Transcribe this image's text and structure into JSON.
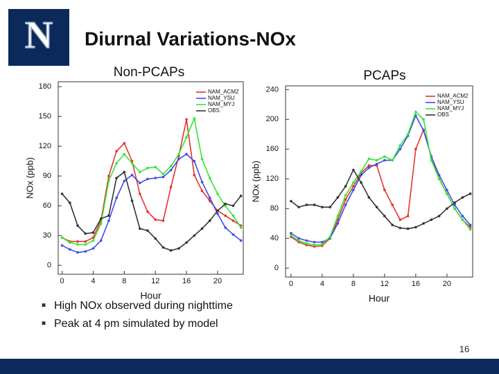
{
  "slide": {
    "title": "Diurnal Variations-NOx",
    "logo": "N",
    "bullets": [
      "High NOx observed during nighttime",
      "Peak at 4 pm simulated by model"
    ],
    "page_number": "16"
  },
  "chart_data": [
    {
      "type": "line",
      "title": "Non-PCAPs",
      "x_label": "Hour",
      "y_label": "NOx (ppb)",
      "x": [
        0,
        1,
        2,
        3,
        4,
        5,
        6,
        7,
        8,
        9,
        10,
        11,
        12,
        13,
        14,
        15,
        16,
        17,
        18,
        19,
        20,
        21,
        22,
        23
      ],
      "xlim": [
        -0.5,
        23.3
      ],
      "xticks": [
        0,
        4,
        8,
        12,
        16,
        20
      ],
      "ylim": [
        -9,
        185
      ],
      "yticks": [
        0,
        30,
        60,
        90,
        120,
        150,
        180
      ],
      "legend": "upper right",
      "series": [
        {
          "name": "NAM_ACM2",
          "color": "#e8312b",
          "values": [
            28,
            24,
            24,
            24,
            28,
            45,
            90,
            115,
            123,
            105,
            72,
            54,
            46,
            45,
            79,
            110,
            147,
            91,
            75,
            65,
            55,
            50,
            45,
            40
          ]
        },
        {
          "name": "NAM_YSU",
          "color": "#3f4bea",
          "values": [
            20,
            16,
            13,
            14,
            17,
            25,
            45,
            68,
            85,
            91,
            83,
            87,
            88,
            89,
            96,
            107,
            112,
            105,
            84,
            68,
            52,
            38,
            31,
            25
          ]
        },
        {
          "name": "NAM_MYJ",
          "color": "#33e633",
          "values": [
            28,
            23,
            21,
            21,
            25,
            42,
            85,
            103,
            112,
            103,
            94,
            98,
            99,
            92,
            100,
            112,
            129,
            148,
            107,
            88,
            72,
            60,
            50,
            38
          ]
        },
        {
          "name": "OBS",
          "color": "#333333",
          "values": [
            72,
            63,
            40,
            32,
            33,
            47,
            50,
            88,
            94,
            65,
            37,
            35,
            27,
            18,
            15,
            17,
            23,
            30,
            37,
            45,
            55,
            62,
            60,
            70
          ]
        }
      ]
    },
    {
      "type": "line",
      "title": "PCAPs",
      "x_label": "Hour",
      "y_label": "NOx (ppb)",
      "x": [
        0,
        1,
        2,
        3,
        4,
        5,
        6,
        7,
        8,
        9,
        10,
        11,
        12,
        13,
        14,
        15,
        16,
        17,
        18,
        19,
        20,
        21,
        22,
        23
      ],
      "xlim": [
        -0.7,
        23.3
      ],
      "xticks": [
        0,
        4,
        8,
        12,
        16,
        20
      ],
      "ylim": [
        -12,
        245
      ],
      "yticks": [
        0,
        40,
        80,
        120,
        160,
        200,
        240
      ],
      "legend": "upper right",
      "series": [
        {
          "name": "NAM_ACM2",
          "color": "#e8312b",
          "values": [
            42,
            35,
            31,
            29,
            30,
            40,
            65,
            92,
            110,
            128,
            138,
            138,
            105,
            85,
            65,
            70,
            160,
            186,
            150,
            120,
            100,
            80,
            65,
            55
          ]
        },
        {
          "name": "NAM_YSU",
          "color": "#3f4bea",
          "values": [
            47,
            40,
            37,
            35,
            35,
            40,
            60,
            85,
            105,
            125,
            135,
            140,
            145,
            145,
            160,
            178,
            205,
            185,
            150,
            125,
            105,
            85,
            70,
            58
          ]
        },
        {
          "name": "NAM_MYJ",
          "color": "#33e633",
          "values": [
            44,
            37,
            33,
            31,
            32,
            42,
            70,
            98,
            115,
            130,
            147,
            145,
            150,
            145,
            165,
            180,
            210,
            200,
            145,
            120,
            100,
            80,
            65,
            52
          ]
        },
        {
          "name": "OBS",
          "color": "#333333",
          "values": [
            90,
            82,
            85,
            85,
            82,
            82,
            95,
            110,
            132,
            115,
            95,
            82,
            70,
            58,
            54,
            53,
            55,
            60,
            65,
            70,
            80,
            88,
            95,
            100
          ]
        }
      ]
    }
  ]
}
